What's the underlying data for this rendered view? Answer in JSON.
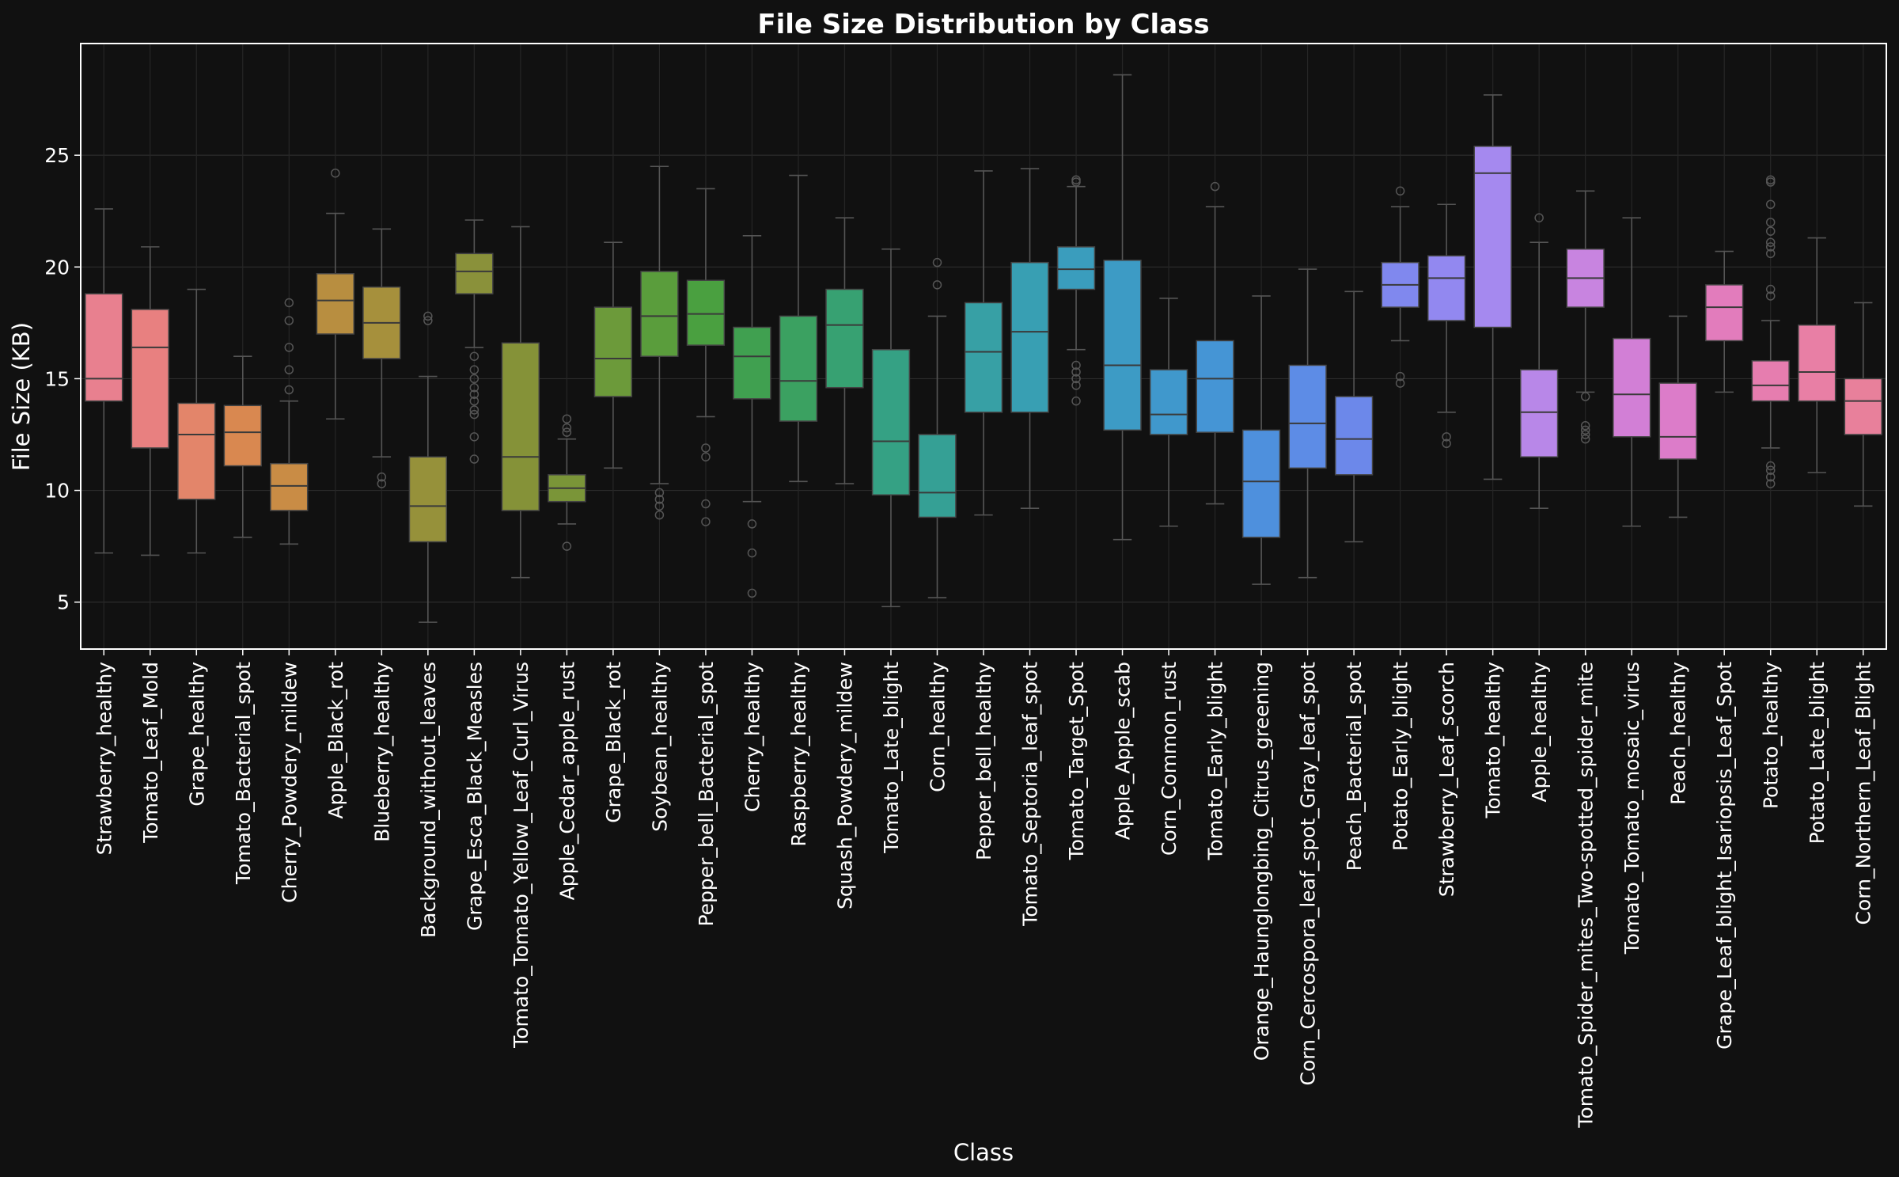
{
  "chart_data": {
    "type": "box",
    "title": "File Size Distribution by Class",
    "xlabel": "Class",
    "ylabel": "File Size (KB)",
    "ylim": [
      2.9,
      30.0
    ],
    "yticks": [
      5,
      10,
      15,
      20,
      25
    ],
    "grid": true,
    "background": "#111111",
    "categories": [
      "Strawberry_healthy",
      "Tomato_Leaf_Mold",
      "Grape_healthy",
      "Tomato_Bacterial_spot",
      "Cherry_Powdery_mildew",
      "Apple_Black_rot",
      "Blueberry_healthy",
      "Background_without_leaves",
      "Grape_Esca_Black_Measles",
      "Tomato_Tomato_Yellow_Leaf_Curl_Virus",
      "Apple_Cedar_apple_rust",
      "Grape_Black_rot",
      "Soybean_healthy",
      "Pepper_bell_Bacterial_spot",
      "Cherry_healthy",
      "Raspberry_healthy",
      "Squash_Powdery_mildew",
      "Tomato_Late_blight",
      "Corn_healthy",
      "Pepper_bell_healthy",
      "Tomato_Septoria_leaf_spot",
      "Tomato_Target_Spot",
      "Apple_Apple_scab",
      "Corn_Common_rust",
      "Tomato_Early_blight",
      "Orange_Haunglongbing_Citrus_greening",
      "Corn_Cercospora_leaf_spot_Gray_leaf_spot",
      "Peach_Bacterial_spot",
      "Potato_Early_blight",
      "Strawberry_Leaf_scorch",
      "Tomato_healthy",
      "Apple_healthy",
      "Tomato_Spider_mites_Two-spotted_spider_mite",
      "Tomato_Tomato_mosaic_virus",
      "Peach_healthy",
      "Grape_Leaf_blight_Isariopsis_Leaf_Spot",
      "Potato_healthy",
      "Potato_Late_blight",
      "Corn_Northern_Leaf_Blight"
    ],
    "colors": [
      "#e8808f",
      "#e88080",
      "#e3856a",
      "#d98850",
      "#c98c45",
      "#b88e40",
      "#a6903c",
      "#96913a",
      "#8a913a",
      "#859238",
      "#7a9538",
      "#6c9a3a",
      "#5a9d3c",
      "#4aa040",
      "#40a050",
      "#3ba161",
      "#37a172",
      "#35a184",
      "#35a095",
      "#37a0a5",
      "#389fb3",
      "#3a9dbd",
      "#3d9bc5",
      "#4098cc",
      "#4595d5",
      "#4e90dd",
      "#5d8ce6",
      "#6c88ea",
      "#8088ee",
      "#9288f0",
      "#a589ef",
      "#b887e8",
      "#c884e0",
      "#d27fd6",
      "#dc7cc9",
      "#e27cbc",
      "#e67daf",
      "#e87fa5",
      "#e8809b"
    ],
    "boxes": [
      {
        "whislo": 7.2,
        "q1": 14.0,
        "med": 15.0,
        "q3": 18.8,
        "whishi": 22.6,
        "fliers": []
      },
      {
        "whislo": 7.1,
        "q1": 11.9,
        "med": 16.4,
        "q3": 18.1,
        "whishi": 20.9,
        "fliers": []
      },
      {
        "whislo": 7.2,
        "q1": 9.6,
        "med": 12.5,
        "q3": 13.9,
        "whishi": 19.0,
        "fliers": []
      },
      {
        "whislo": 7.9,
        "q1": 11.1,
        "med": 12.6,
        "q3": 13.8,
        "whishi": 16.0,
        "fliers": []
      },
      {
        "whislo": 7.6,
        "q1": 9.1,
        "med": 10.2,
        "q3": 11.2,
        "whishi": 14.0,
        "fliers": [
          14.5,
          15.4,
          16.4,
          17.6,
          18.4
        ]
      },
      {
        "whislo": 13.2,
        "q1": 17.0,
        "med": 18.5,
        "q3": 19.7,
        "whishi": 22.4,
        "fliers": [
          24.2
        ]
      },
      {
        "whislo": 11.5,
        "q1": 15.9,
        "med": 17.5,
        "q3": 19.1,
        "whishi": 21.7,
        "fliers": [
          10.3,
          10.6
        ]
      },
      {
        "whislo": 4.1,
        "q1": 7.7,
        "med": 9.3,
        "q3": 11.5,
        "whishi": 15.1,
        "fliers": [
          17.6,
          17.8
        ]
      },
      {
        "whislo": 16.4,
        "q1": 18.8,
        "med": 19.8,
        "q3": 20.6,
        "whishi": 22.1,
        "fliers": [
          11.4,
          12.4,
          13.4,
          13.6,
          14.0,
          14.3,
          14.6,
          15.0,
          15.4,
          16.0
        ]
      },
      {
        "whislo": 6.1,
        "q1": 9.1,
        "med": 11.5,
        "q3": 16.6,
        "whishi": 21.8,
        "fliers": []
      },
      {
        "whislo": 8.5,
        "q1": 9.5,
        "med": 10.1,
        "q3": 10.7,
        "whishi": 12.3,
        "fliers": [
          7.5,
          12.6,
          12.8,
          13.2
        ]
      },
      {
        "whislo": 11.0,
        "q1": 14.2,
        "med": 15.9,
        "q3": 18.2,
        "whishi": 21.1,
        "fliers": []
      },
      {
        "whislo": 10.3,
        "q1": 16.0,
        "med": 17.8,
        "q3": 19.8,
        "whishi": 24.5,
        "fliers": [
          8.9,
          9.3,
          9.6,
          9.9
        ]
      },
      {
        "whislo": 13.3,
        "q1": 16.5,
        "med": 17.9,
        "q3": 19.4,
        "whishi": 23.5,
        "fliers": [
          8.6,
          9.4,
          11.5,
          11.9
        ]
      },
      {
        "whislo": 9.5,
        "q1": 14.1,
        "med": 16.0,
        "q3": 17.3,
        "whishi": 21.4,
        "fliers": [
          5.4,
          7.2,
          8.5
        ]
      },
      {
        "whislo": 10.4,
        "q1": 13.1,
        "med": 14.9,
        "q3": 17.8,
        "whishi": 24.1,
        "fliers": []
      },
      {
        "whislo": 10.3,
        "q1": 14.6,
        "med": 17.4,
        "q3": 19.0,
        "whishi": 22.2,
        "fliers": []
      },
      {
        "whislo": 4.8,
        "q1": 9.8,
        "med": 12.2,
        "q3": 16.3,
        "whishi": 20.8,
        "fliers": []
      },
      {
        "whislo": 5.2,
        "q1": 8.8,
        "med": 9.9,
        "q3": 12.5,
        "whishi": 17.8,
        "fliers": [
          19.2,
          20.2
        ]
      },
      {
        "whislo": 8.9,
        "q1": 13.5,
        "med": 16.2,
        "q3": 18.4,
        "whishi": 24.3,
        "fliers": []
      },
      {
        "whislo": 9.2,
        "q1": 13.5,
        "med": 17.1,
        "q3": 20.2,
        "whishi": 24.4,
        "fliers": []
      },
      {
        "whislo": 16.3,
        "q1": 19.0,
        "med": 19.9,
        "q3": 20.9,
        "whishi": 23.6,
        "fliers": [
          14.0,
          14.7,
          15.0,
          15.3,
          15.6,
          23.8,
          23.9
        ]
      },
      {
        "whislo": 7.8,
        "q1": 12.7,
        "med": 15.6,
        "q3": 20.3,
        "whishi": 28.6,
        "fliers": []
      },
      {
        "whislo": 8.4,
        "q1": 12.5,
        "med": 13.4,
        "q3": 15.4,
        "whishi": 18.6,
        "fliers": []
      },
      {
        "whislo": 9.4,
        "q1": 12.6,
        "med": 15.0,
        "q3": 16.7,
        "whishi": 22.7,
        "fliers": [
          23.6
        ]
      },
      {
        "whislo": 5.8,
        "q1": 7.9,
        "med": 10.4,
        "q3": 12.7,
        "whishi": 18.7,
        "fliers": []
      },
      {
        "whislo": 6.1,
        "q1": 11.0,
        "med": 13.0,
        "q3": 15.6,
        "whishi": 19.9,
        "fliers": []
      },
      {
        "whislo": 7.7,
        "q1": 10.7,
        "med": 12.3,
        "q3": 14.2,
        "whishi": 18.9,
        "fliers": []
      },
      {
        "whislo": 16.7,
        "q1": 18.2,
        "med": 19.2,
        "q3": 20.2,
        "whishi": 22.7,
        "fliers": [
          14.8,
          15.1,
          23.4
        ]
      },
      {
        "whislo": 13.5,
        "q1": 17.6,
        "med": 19.5,
        "q3": 20.5,
        "whishi": 22.8,
        "fliers": [
          12.1,
          12.4
        ]
      },
      {
        "whislo": 10.5,
        "q1": 17.3,
        "med": 24.2,
        "q3": 25.4,
        "whishi": 27.7,
        "fliers": []
      },
      {
        "whislo": 9.2,
        "q1": 11.5,
        "med": 13.5,
        "q3": 15.4,
        "whishi": 21.1,
        "fliers": [
          22.2
        ]
      },
      {
        "whislo": 14.4,
        "q1": 18.2,
        "med": 19.5,
        "q3": 20.8,
        "whishi": 23.4,
        "fliers": [
          12.3,
          12.5,
          12.7,
          12.9,
          14.2
        ]
      },
      {
        "whislo": 8.4,
        "q1": 12.4,
        "med": 14.3,
        "q3": 16.8,
        "whishi": 22.2,
        "fliers": []
      },
      {
        "whislo": 8.8,
        "q1": 11.4,
        "med": 12.4,
        "q3": 14.8,
        "whishi": 17.8,
        "fliers": []
      },
      {
        "whislo": 14.4,
        "q1": 16.7,
        "med": 18.2,
        "q3": 19.2,
        "whishi": 20.7,
        "fliers": []
      },
      {
        "whislo": 11.9,
        "q1": 14.0,
        "med": 14.7,
        "q3": 15.8,
        "whishi": 17.6,
        "fliers": [
          10.3,
          10.6,
          10.9,
          11.1,
          18.7,
          19.0,
          20.6,
          20.9,
          21.1,
          21.6,
          22.0,
          22.8,
          23.8,
          23.9
        ]
      },
      {
        "whislo": 10.8,
        "q1": 14.0,
        "med": 15.3,
        "q3": 17.4,
        "whishi": 21.3,
        "fliers": []
      },
      {
        "whislo": 9.3,
        "q1": 12.5,
        "med": 14.0,
        "q3": 15.0,
        "whishi": 18.4,
        "fliers": []
      }
    ]
  }
}
